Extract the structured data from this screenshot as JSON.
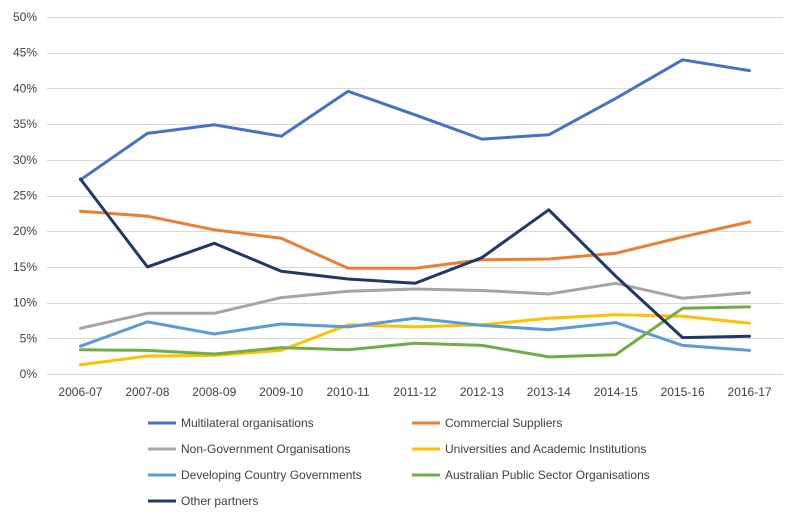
{
  "chart_data": {
    "type": "line",
    "categories": [
      "2006-07",
      "2007-08",
      "2008-09",
      "2009-10",
      "2010-11",
      "2011-12",
      "2012-13",
      "2013-14",
      "2014-15",
      "2015-16",
      "2016-17"
    ],
    "ylim": [
      0,
      50
    ],
    "yticks": [
      0,
      5,
      10,
      15,
      20,
      25,
      30,
      35,
      40,
      45,
      50
    ],
    "ytick_labels": [
      "0%",
      "5%",
      "10%",
      "15%",
      "20%",
      "25%",
      "30%",
      "35%",
      "40%",
      "45%",
      "50%"
    ],
    "grid": "horizontal",
    "legend": "bottom",
    "series": [
      {
        "name": "Multilateral organisations",
        "color": "#4472C4",
        "values": [
          27.2,
          33.7,
          34.9,
          33.3,
          39.6,
          36.3,
          32.9,
          33.5,
          38.6,
          44.0,
          42.5
        ]
      },
      {
        "name": "Commercial Suppliers",
        "color": "#ED7D31",
        "values": [
          22.8,
          22.1,
          20.2,
          19.0,
          14.8,
          14.8,
          16.0,
          16.1,
          16.9,
          19.2,
          21.3
        ]
      },
      {
        "name": "Non-Government Organisations",
        "color": "#A5A5A5",
        "values": [
          6.4,
          8.5,
          8.5,
          10.7,
          11.6,
          11.9,
          11.7,
          11.2,
          12.7,
          10.6,
          11.4
        ]
      },
      {
        "name": "Universities and Academic Institutions",
        "color": "#FFC000",
        "values": [
          1.3,
          2.5,
          2.6,
          3.3,
          6.9,
          6.6,
          6.9,
          7.8,
          8.3,
          8.1,
          7.1
        ]
      },
      {
        "name": "Developing Country Governments",
        "color": "#5B9BD5",
        "values": [
          3.9,
          7.3,
          5.6,
          7.0,
          6.6,
          7.8,
          6.8,
          6.2,
          7.2,
          4.0,
          3.3
        ]
      },
      {
        "name": "Australian Public Sector Organisations",
        "color": "#70AD47",
        "values": [
          3.4,
          3.3,
          2.8,
          3.7,
          3.4,
          4.3,
          4.0,
          2.4,
          2.7,
          9.2,
          9.4
        ]
      },
      {
        "name": "Other partners",
        "color": "#203864",
        "values": [
          27.3,
          15.0,
          18.3,
          14.4,
          13.3,
          12.7,
          16.3,
          23.0,
          13.7,
          5.1,
          5.3
        ]
      }
    ]
  }
}
